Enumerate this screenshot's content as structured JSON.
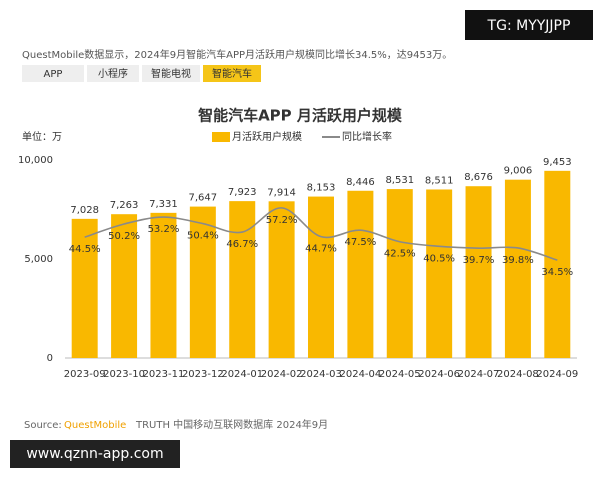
{
  "header": {
    "text": "QuestMobile数据显示，2024年9月智能汽车APP月活跃用户规模同比增长34.5%，达9453万。"
  },
  "tabs": [
    "APP",
    "小程序",
    "智能电视",
    "智能汽车"
  ],
  "watermarks": [
    "TG: MYYJJPP",
    "www.qznn-app.com"
  ],
  "source": {
    "label": "Source:",
    "brand": "QuestMobile",
    "text": "TRUTH 中国移动互联网数据库 2024年9月"
  },
  "chart_data": {
    "type": "bar",
    "title": "智能汽车APP 月活跃用户规模",
    "unit_label": "单位：万",
    "categories": [
      "2023-09",
      "2023-10",
      "2023-11",
      "2023-12",
      "2024-01",
      "2024-02",
      "2024-03",
      "2024-04",
      "2024-05",
      "2024-06",
      "2024-07",
      "2024-08",
      "2024-09"
    ],
    "series": [
      {
        "name": "月活跃用户规模",
        "type": "bar",
        "color": "#f9b800",
        "values": [
          7028,
          7263,
          7331,
          7647,
          7923,
          7914,
          8153,
          8446,
          8531,
          8511,
          8676,
          9006,
          9453
        ],
        "value_labels": [
          "7,028",
          "7,263",
          "7,331",
          "7,647",
          "7,923",
          "7,914",
          "8,153",
          "8,446",
          "8,531",
          "8,511",
          "8,676",
          "9,006",
          "9,453"
        ]
      },
      {
        "name": "同比增长率",
        "type": "line",
        "axis": "y2",
        "color": "#8a8a8a",
        "values": [
          44.5,
          50.2,
          53.2,
          50.4,
          46.7,
          57.2,
          44.7,
          47.5,
          42.5,
          40.5,
          39.7,
          39.8,
          34.5
        ],
        "value_labels": [
          "44.5%",
          "50.2%",
          "53.2%",
          "50.4%",
          "46.7%",
          "57.2%",
          "44.7%",
          "47.5%",
          "42.5%",
          "40.5%",
          "39.7%",
          "39.8%",
          "34.5%"
        ]
      }
    ],
    "ylim": [
      0,
      10000
    ],
    "yticks": [
      0,
      {
        "value": 5000,
        "label": "5,000"
      },
      {
        "value": 10000,
        "label": "10,000"
      }
    ],
    "y2lim": [
      -8,
      78
    ],
    "grid": false,
    "legend": "top-right"
  }
}
